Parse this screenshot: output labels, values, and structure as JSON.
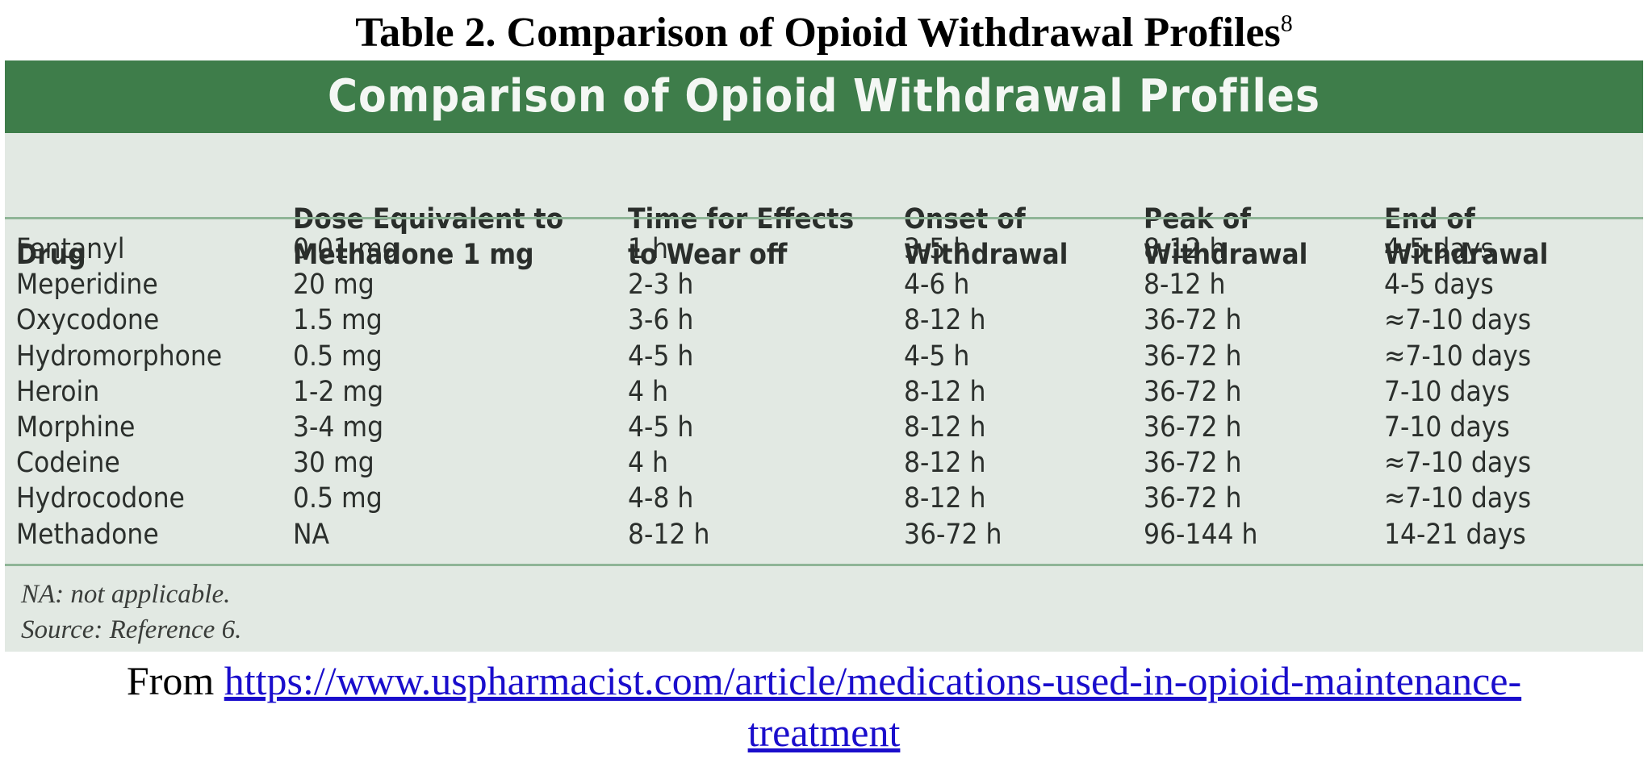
{
  "caption": {
    "text": "Table 2.  Comparison of Opioid Withdrawal Profiles",
    "footnote_ref": "8"
  },
  "table": {
    "banner_title": "Comparison of Opioid Withdrawal Profiles",
    "header_color": "#3e7d4a",
    "background_color": "#e2e9e3",
    "columns": [
      {
        "label_line1": "",
        "label_line2": "Drug"
      },
      {
        "label_line1": "Dose Equivalent to",
        "label_line2": "Methadone 1 mg"
      },
      {
        "label_line1": "Time for Effects",
        "label_line2": "to Wear off"
      },
      {
        "label_line1": "Onset of",
        "label_line2": "Withdrawal"
      },
      {
        "label_line1": "Peak of",
        "label_line2": "Withdrawal"
      },
      {
        "label_line1": "End of",
        "label_line2": "Withdrawal"
      }
    ],
    "rows": [
      [
        "Fentanyl",
        "0.01 mg",
        "1 h",
        "3-5 h",
        "8-12 h",
        "4-5 days"
      ],
      [
        "Meperidine",
        "20 mg",
        "2-3 h",
        "4-6 h",
        "8-12 h",
        "4-5 days"
      ],
      [
        "Oxycodone",
        "1.5 mg",
        "3-6 h",
        "8-12 h",
        "36-72 h",
        "≈7-10 days"
      ],
      [
        "Hydromorphone",
        "0.5 mg",
        "4-5 h",
        "4-5 h",
        "36-72 h",
        "≈7-10 days"
      ],
      [
        "Heroin",
        "1-2 mg",
        "4 h",
        "8-12 h",
        "36-72 h",
        "7-10 days"
      ],
      [
        "Morphine",
        "3-4 mg",
        "4-5 h",
        "8-12 h",
        "36-72 h",
        "7-10 days"
      ],
      [
        "Codeine",
        "30 mg",
        "4 h",
        "8-12 h",
        "36-72 h",
        "≈7-10 days"
      ],
      [
        "Hydrocodone",
        "0.5 mg",
        "4-8 h",
        "8-12 h",
        "36-72 h",
        "≈7-10 days"
      ],
      [
        "Methadone",
        "NA",
        "8-12 h",
        "36-72 h",
        "96-144 h",
        "14-21 days"
      ]
    ],
    "notes": [
      "NA: not applicable.",
      "Source: Reference 6."
    ]
  },
  "source": {
    "prefix": "From ",
    "link_text_line1": "https://www.uspharmacist.com/article/medications-used-in-opioid-maintenance-",
    "link_text_line2": "treatment",
    "link_color": "#1a0dcc"
  }
}
